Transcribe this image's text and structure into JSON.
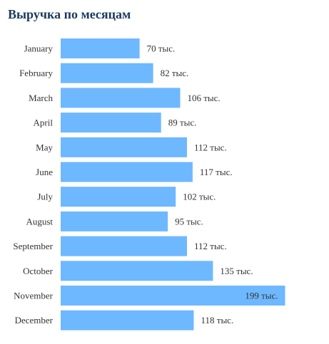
{
  "chart_data": {
    "type": "bar",
    "orientation": "horizontal",
    "title": "Выручка по месяцам",
    "xlabel": "",
    "ylabel": "",
    "grid": false,
    "xlim": [
      0,
      205
    ],
    "categories": [
      "January",
      "February",
      "March",
      "April",
      "May",
      "June",
      "July",
      "August",
      "September",
      "October",
      "November",
      "December"
    ],
    "values": [
      70,
      82,
      106,
      89,
      112,
      117,
      102,
      95,
      112,
      135,
      199,
      118
    ],
    "value_labels": [
      "70 тыс.",
      "82 тыс.",
      "106 тыс.",
      "89 тыс.",
      "112 тыс.",
      "117 тыс.",
      "102 тыс.",
      "95 тыс.",
      "112 тыс.",
      "135 тыс.",
      "199 тыс.",
      "118 тыс."
    ],
    "bar_color": "#6eb8ff",
    "title_color": "#1a3a5c",
    "label_color": "#333333"
  }
}
